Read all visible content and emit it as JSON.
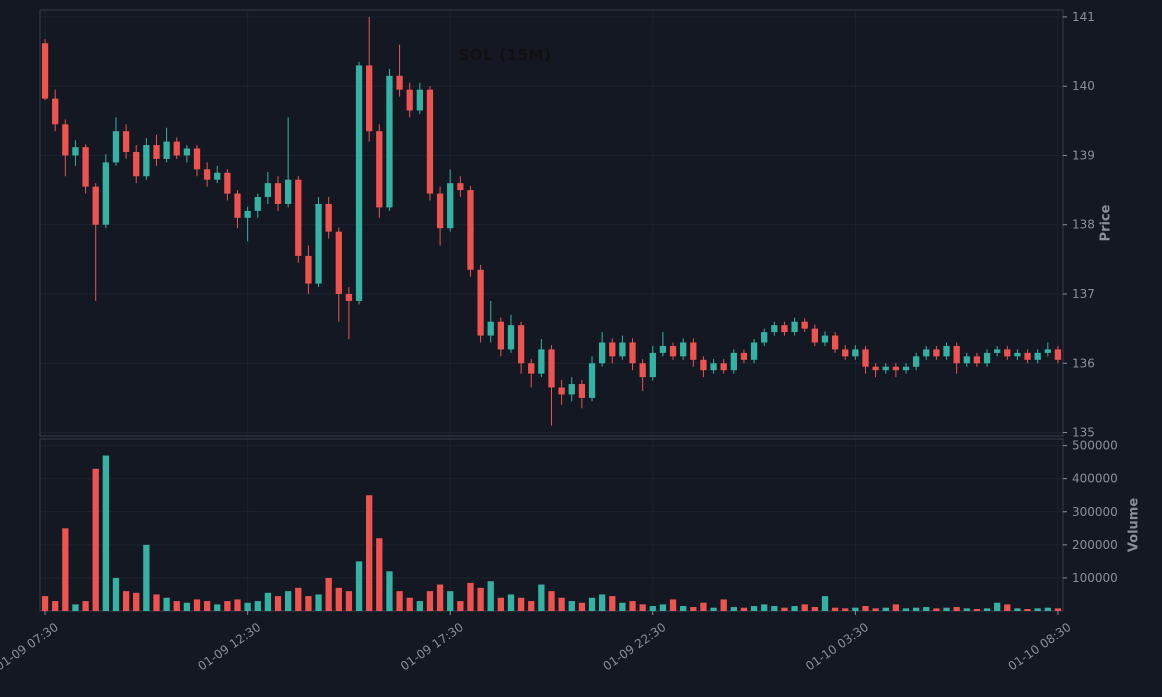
{
  "chart_data": {
    "type": "candlestick",
    "symbol": "SOL",
    "interval": "15M",
    "title": "SOL (15M)",
    "price_axis_label": "Price",
    "volume_axis_label": "Volume",
    "legend_position": "none",
    "grid": true,
    "price_ticks": [
      135,
      136,
      137,
      138,
      139,
      140,
      141
    ],
    "price_ylim": [
      134.95,
      141.1
    ],
    "volume_ticks": [
      100000,
      200000,
      300000,
      400000,
      500000
    ],
    "volume_ylim": [
      0,
      520000
    ],
    "x_tick_indices": [
      0,
      20,
      40,
      60,
      80,
      100
    ],
    "x_tick_labels": [
      "01-09 07:30",
      "01-09 12:30",
      "01-09 17:30",
      "01-09 22:30",
      "01-10 03:30",
      "01-10 08:30"
    ],
    "colors": {
      "up": "#34b3a5",
      "down": "#ef5350",
      "background": "#141823",
      "grid": "#1d2230",
      "frame": "#363b49",
      "axis_text": "#8a8e98",
      "title": "#111111"
    },
    "candles_format": [
      "open",
      "high",
      "low",
      "close",
      "volume"
    ],
    "candles": [
      [
        140.62,
        140.68,
        139.8,
        139.82,
        45000
      ],
      [
        139.82,
        139.95,
        139.35,
        139.45,
        30000
      ],
      [
        139.45,
        139.52,
        138.7,
        139.0,
        250000
      ],
      [
        139.0,
        139.22,
        138.85,
        139.12,
        20000
      ],
      [
        139.12,
        139.16,
        138.45,
        138.55,
        30000
      ],
      [
        138.55,
        138.6,
        136.9,
        138.0,
        430000
      ],
      [
        138.0,
        139.02,
        137.95,
        138.9,
        470000
      ],
      [
        138.9,
        139.55,
        138.85,
        139.35,
        100000
      ],
      [
        139.35,
        139.45,
        138.95,
        139.05,
        60000
      ],
      [
        139.05,
        139.15,
        138.6,
        138.7,
        55000
      ],
      [
        138.7,
        139.25,
        138.65,
        139.15,
        200000
      ],
      [
        139.15,
        139.3,
        138.85,
        138.95,
        50000
      ],
      [
        138.95,
        139.4,
        138.9,
        139.2,
        40000
      ],
      [
        139.2,
        139.26,
        138.95,
        139.0,
        30000
      ],
      [
        139.0,
        139.15,
        138.9,
        139.1,
        25000
      ],
      [
        139.1,
        139.15,
        138.7,
        138.8,
        35000
      ],
      [
        138.8,
        138.9,
        138.55,
        138.65,
        30000
      ],
      [
        138.65,
        138.85,
        138.6,
        138.75,
        20000
      ],
      [
        138.75,
        138.8,
        138.35,
        138.45,
        30000
      ],
      [
        138.45,
        138.5,
        137.95,
        138.1,
        35000
      ],
      [
        138.1,
        138.26,
        137.76,
        138.2,
        25000
      ],
      [
        138.2,
        138.45,
        138.1,
        138.4,
        30000
      ],
      [
        138.4,
        138.76,
        138.3,
        138.6,
        55000
      ],
      [
        138.6,
        138.7,
        138.2,
        138.3,
        45000
      ],
      [
        138.3,
        139.55,
        138.25,
        138.65,
        60000
      ],
      [
        138.65,
        138.7,
        137.45,
        137.55,
        70000
      ],
      [
        137.55,
        137.7,
        137.0,
        137.15,
        45000
      ],
      [
        137.15,
        138.4,
        137.1,
        138.3,
        50000
      ],
      [
        138.3,
        138.4,
        137.8,
        137.9,
        100000
      ],
      [
        137.9,
        137.96,
        136.6,
        137.0,
        70000
      ],
      [
        137.0,
        137.1,
        136.35,
        136.9,
        60000
      ],
      [
        136.9,
        140.35,
        136.85,
        140.3,
        150000
      ],
      [
        140.3,
        141.0,
        139.2,
        139.35,
        350000
      ],
      [
        139.35,
        139.45,
        138.1,
        138.25,
        220000
      ],
      [
        138.25,
        140.25,
        138.2,
        140.15,
        120000
      ],
      [
        140.15,
        140.6,
        139.85,
        139.95,
        60000
      ],
      [
        139.95,
        140.05,
        139.55,
        139.65,
        40000
      ],
      [
        139.65,
        140.05,
        139.6,
        139.95,
        30000
      ],
      [
        139.95,
        140.0,
        138.35,
        138.45,
        60000
      ],
      [
        138.45,
        138.55,
        137.7,
        137.95,
        80000
      ],
      [
        137.95,
        138.8,
        137.9,
        138.6,
        60000
      ],
      [
        138.6,
        138.7,
        138.4,
        138.5,
        30000
      ],
      [
        138.5,
        138.56,
        137.25,
        137.35,
        85000
      ],
      [
        137.35,
        137.42,
        136.3,
        136.4,
        70000
      ],
      [
        136.4,
        136.9,
        136.3,
        136.6,
        90000
      ],
      [
        136.6,
        136.66,
        136.1,
        136.2,
        40000
      ],
      [
        136.2,
        136.7,
        136.15,
        136.55,
        50000
      ],
      [
        136.55,
        136.6,
        135.85,
        136.0,
        40000
      ],
      [
        136.0,
        136.06,
        135.65,
        135.85,
        30000
      ],
      [
        135.85,
        136.35,
        135.8,
        136.2,
        80000
      ],
      [
        136.2,
        136.26,
        135.1,
        135.65,
        60000
      ],
      [
        135.65,
        135.76,
        135.4,
        135.55,
        40000
      ],
      [
        135.55,
        135.8,
        135.45,
        135.7,
        30000
      ],
      [
        135.7,
        135.76,
        135.35,
        135.5,
        25000
      ],
      [
        135.5,
        136.1,
        135.45,
        136.0,
        40000
      ],
      [
        136.0,
        136.45,
        135.95,
        136.3,
        50000
      ],
      [
        136.3,
        136.36,
        136.0,
        136.1,
        45000
      ],
      [
        136.1,
        136.4,
        136.05,
        136.3,
        25000
      ],
      [
        136.3,
        136.36,
        135.9,
        136.0,
        30000
      ],
      [
        136.0,
        136.06,
        135.6,
        135.8,
        20000
      ],
      [
        135.8,
        136.25,
        135.75,
        136.15,
        15000
      ],
      [
        136.15,
        136.45,
        136.1,
        136.25,
        20000
      ],
      [
        136.25,
        136.3,
        136.05,
        136.1,
        35000
      ],
      [
        136.1,
        136.36,
        136.05,
        136.3,
        15000
      ],
      [
        136.3,
        136.36,
        135.95,
        136.05,
        12000
      ],
      [
        136.05,
        136.1,
        135.8,
        135.9,
        25000
      ],
      [
        135.9,
        136.06,
        135.85,
        136.0,
        10000
      ],
      [
        136.0,
        136.06,
        135.85,
        135.9,
        35000
      ],
      [
        135.9,
        136.2,
        135.85,
        136.15,
        12000
      ],
      [
        136.15,
        136.2,
        136.0,
        136.05,
        10000
      ],
      [
        136.05,
        136.35,
        136.0,
        136.3,
        15000
      ],
      [
        136.3,
        136.5,
        136.25,
        136.45,
        20000
      ],
      [
        136.45,
        136.6,
        136.4,
        136.55,
        15000
      ],
      [
        136.55,
        136.6,
        136.4,
        136.45,
        10000
      ],
      [
        136.45,
        136.66,
        136.4,
        136.6,
        15000
      ],
      [
        136.6,
        136.65,
        136.45,
        136.5,
        20000
      ],
      [
        136.5,
        136.56,
        136.25,
        136.3,
        12000
      ],
      [
        136.3,
        136.46,
        136.25,
        136.4,
        45000
      ],
      [
        136.4,
        136.45,
        136.15,
        136.2,
        10000
      ],
      [
        136.2,
        136.26,
        136.05,
        136.1,
        8000
      ],
      [
        136.1,
        136.26,
        136.05,
        136.2,
        10000
      ],
      [
        136.2,
        136.25,
        135.85,
        135.95,
        15000
      ],
      [
        135.95,
        136.0,
        135.8,
        135.9,
        8000
      ],
      [
        135.9,
        136.0,
        135.85,
        135.95,
        10000
      ],
      [
        135.95,
        136.0,
        135.8,
        135.9,
        20000
      ],
      [
        135.9,
        136.0,
        135.85,
        135.95,
        8000
      ],
      [
        135.95,
        136.15,
        135.9,
        136.1,
        10000
      ],
      [
        136.1,
        136.25,
        136.05,
        136.2,
        12000
      ],
      [
        136.2,
        136.25,
        136.05,
        136.1,
        8000
      ],
      [
        136.1,
        136.3,
        136.05,
        136.25,
        10000
      ],
      [
        136.25,
        136.3,
        135.85,
        136.0,
        12000
      ],
      [
        136.0,
        136.15,
        135.95,
        136.1,
        8000
      ],
      [
        136.1,
        136.15,
        135.95,
        136.0,
        6000
      ],
      [
        136.0,
        136.2,
        135.95,
        136.15,
        8000
      ],
      [
        136.15,
        136.25,
        136.1,
        136.2,
        25000
      ],
      [
        136.2,
        136.25,
        136.05,
        136.1,
        20000
      ],
      [
        136.1,
        136.2,
        136.05,
        136.15,
        8000
      ],
      [
        136.15,
        136.2,
        136.0,
        136.05,
        6000
      ],
      [
        136.05,
        136.2,
        136.0,
        136.15,
        8000
      ],
      [
        136.15,
        136.3,
        136.1,
        136.2,
        10000
      ],
      [
        136.2,
        136.25,
        136.0,
        136.05,
        8000
      ]
    ]
  }
}
